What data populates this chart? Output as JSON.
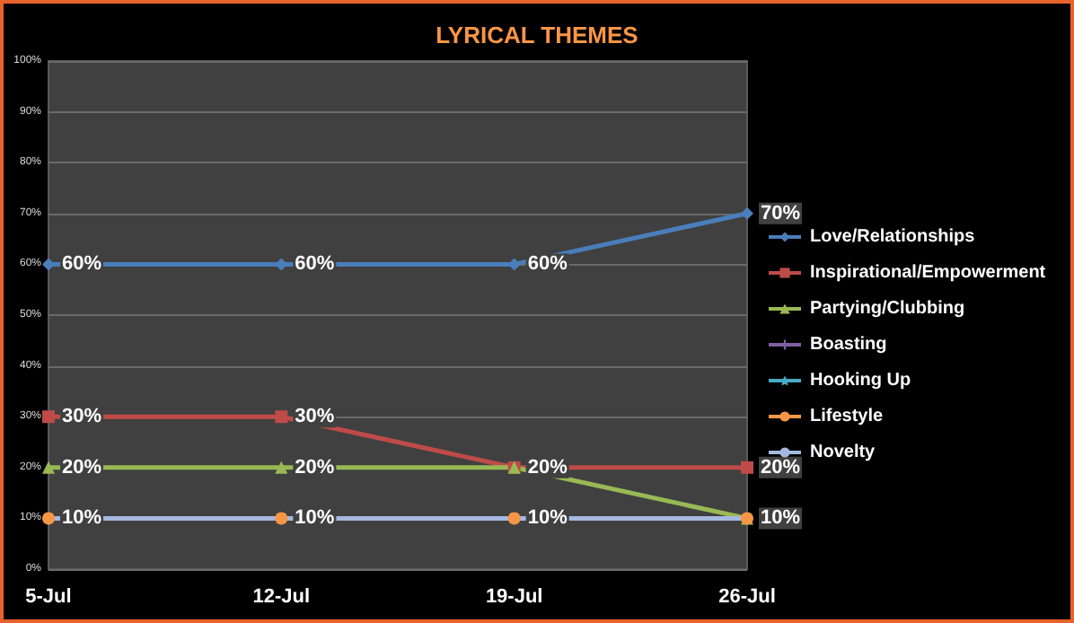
{
  "chart_data": {
    "type": "line",
    "title": "LYRICAL THEMES",
    "categories": [
      "5-Jul",
      "12-Jul",
      "19-Jul",
      "26-Jul"
    ],
    "series": [
      {
        "name": "Love/Relationships",
        "color": "#4a7ebb",
        "marker": "diamond",
        "values": [
          60,
          60,
          60,
          70
        ],
        "value_labels": [
          "60%",
          "60%",
          "60%",
          "70%"
        ]
      },
      {
        "name": "Inspirational/Empowerment",
        "color": "#be4b48",
        "marker": "square",
        "values": [
          30,
          30,
          20,
          20
        ],
        "value_labels": [
          "30%",
          "30%",
          null,
          "20%"
        ]
      },
      {
        "name": "Partying/Clubbing",
        "color": "#98b954",
        "marker": "triangle",
        "values": [
          20,
          20,
          20,
          10
        ],
        "value_labels": [
          "20%",
          "20%",
          "20%",
          null
        ]
      },
      {
        "name": "Boasting",
        "color": "#7d60a0",
        "marker": "cross",
        "values": [
          null,
          null,
          null,
          null
        ]
      },
      {
        "name": "Hooking Up",
        "color": "#46aac5",
        "marker": "star",
        "values": [
          null,
          null,
          null,
          null
        ]
      },
      {
        "name": "Lifestyle",
        "color": "#f79646",
        "marker": "circle",
        "values": [
          10,
          10,
          10,
          10
        ],
        "value_labels": [
          "10%",
          "10%",
          "10%",
          "10%"
        ]
      },
      {
        "name": "Novelty",
        "color": "#a5b9e0",
        "marker": "none",
        "values": [
          10,
          10,
          10,
          10
        ]
      }
    ],
    "ylim": [
      0,
      100
    ],
    "yticks": [
      {
        "value": 0,
        "label": "0%"
      },
      {
        "value": 10,
        "label": "10%"
      },
      {
        "value": 20,
        "label": "20%"
      },
      {
        "value": 30,
        "label": "30%"
      },
      {
        "value": 40,
        "label": "40%"
      },
      {
        "value": 50,
        "label": "50%"
      },
      {
        "value": 60,
        "label": "60%"
      },
      {
        "value": 70,
        "label": "70%"
      },
      {
        "value": 80,
        "label": "80%"
      },
      {
        "value": 90,
        "label": "90%"
      },
      {
        "value": 100,
        "label": "100%"
      }
    ],
    "grid": "y",
    "legend": "right"
  }
}
